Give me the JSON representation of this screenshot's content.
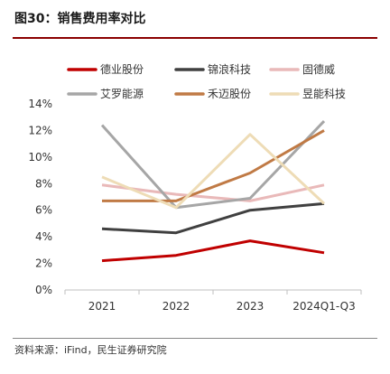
{
  "figure": {
    "title": "图30：销售费用率对比",
    "source": "资料来源：iFind，民生证券研究院"
  },
  "chart_data": {
    "type": "line",
    "categories": [
      "2021",
      "2022",
      "2023",
      "2024Q1-Q3"
    ],
    "ylim": [
      0,
      14
    ],
    "yticks": [
      "0%",
      "2%",
      "4%",
      "6%",
      "8%",
      "10%",
      "12%",
      "14%"
    ],
    "grid": false,
    "legend_position": "top",
    "series": [
      {
        "name": "德业股份",
        "color": "#c00000",
        "values": [
          2.2,
          2.6,
          3.7,
          2.8
        ]
      },
      {
        "name": "锦浪科技",
        "color": "#404040",
        "values": [
          4.6,
          4.3,
          6.0,
          6.5
        ]
      },
      {
        "name": "固德威",
        "color": "#e9b9b9",
        "values": [
          7.9,
          7.2,
          6.7,
          7.9
        ]
      },
      {
        "name": "艾罗能源",
        "color": "#a6a6a6",
        "values": [
          12.4,
          6.2,
          6.9,
          12.7
        ]
      },
      {
        "name": "禾迈股份",
        "color": "#c07a45",
        "values": [
          6.7,
          6.7,
          8.8,
          12.0
        ]
      },
      {
        "name": "昱能科技",
        "color": "#eedcb6",
        "values": [
          8.5,
          6.2,
          11.7,
          6.5
        ]
      }
    ]
  }
}
